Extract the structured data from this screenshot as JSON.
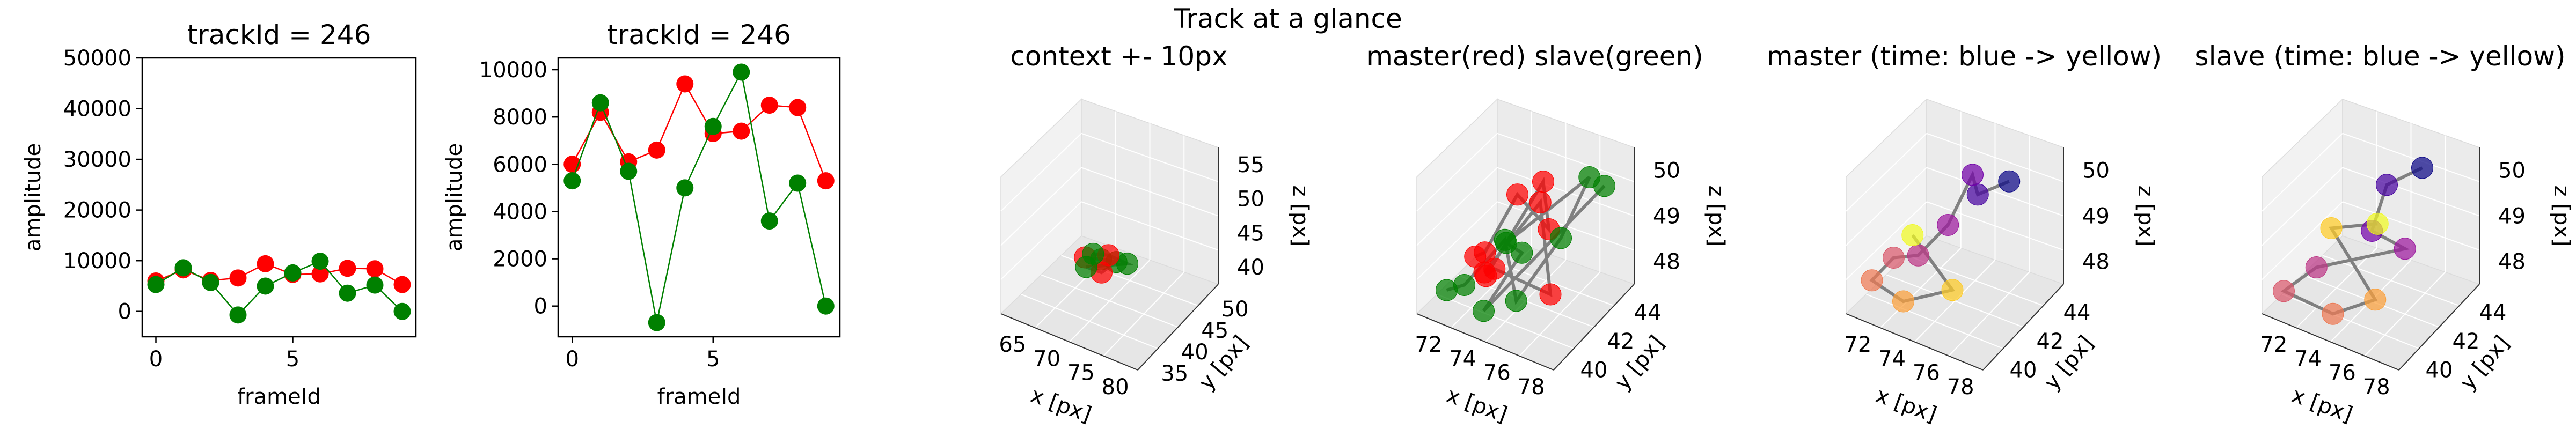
{
  "suptitle": "Track at a glance",
  "chart_data": [
    {
      "type": "line",
      "title": "trackId = 246",
      "xlabel": "frameId",
      "ylabel": "amplitude",
      "xlim": [
        -0.5,
        9.5
      ],
      "ylim": [
        -5000,
        50000
      ],
      "xticks": [
        "0",
        "5"
      ],
      "yticks": [
        "0",
        "10000",
        "20000",
        "30000",
        "40000",
        "50000"
      ],
      "x": [
        0,
        1,
        2,
        3,
        4,
        5,
        6,
        7,
        8,
        9
      ],
      "series": [
        {
          "color": "#ff0000",
          "values": [
            6000,
            8200,
            6100,
            6600,
            9400,
            7300,
            7400,
            8500,
            8400,
            5300
          ]
        },
        {
          "color": "#008000",
          "values": [
            5300,
            8600,
            5700,
            -700,
            5000,
            7600,
            9900,
            3600,
            5200,
            0
          ]
        }
      ]
    },
    {
      "type": "line",
      "title": "trackId = 246",
      "xlabel": "frameId",
      "ylabel": "amplitude",
      "xlim": [
        -0.5,
        9.5
      ],
      "ylim": [
        -1300,
        10500
      ],
      "xticks": [
        "0",
        "5"
      ],
      "yticks": [
        "0",
        "2000",
        "4000",
        "6000",
        "8000",
        "10000"
      ],
      "x": [
        0,
        1,
        2,
        3,
        4,
        5,
        6,
        7,
        8,
        9
      ],
      "series": [
        {
          "color": "#ff0000",
          "values": [
            6000,
            8200,
            6100,
            6600,
            9400,
            7300,
            7400,
            8500,
            8400,
            5300
          ]
        },
        {
          "color": "#008000",
          "values": [
            5300,
            8600,
            5700,
            -700,
            5000,
            7600,
            9900,
            3600,
            5200,
            0
          ]
        }
      ]
    },
    {
      "type": "scatter",
      "title": "context +- 10px",
      "xlabel": "x [px]",
      "ylabel": "y [px]",
      "zlabel": "z [px]",
      "xticks": [
        "65",
        "70",
        "75",
        "80"
      ],
      "yticks": [
        "35",
        "40",
        "45",
        "50"
      ],
      "zticks": [
        "40",
        "45",
        "50",
        "55"
      ]
    },
    {
      "type": "scatter",
      "title": "master(red) slave(green)",
      "xlabel": "x [px]",
      "ylabel": "y [px]",
      "zlabel": "z [px]",
      "xticks": [
        "72",
        "74",
        "76",
        "78"
      ],
      "yticks": [
        "40",
        "42",
        "44"
      ],
      "zticks": [
        "48",
        "49",
        "50"
      ]
    },
    {
      "type": "scatter",
      "title": "master (time: blue -> yellow)",
      "xlabel": "x [px]",
      "ylabel": "y [px]",
      "zlabel": "z [px]",
      "xticks": [
        "72",
        "74",
        "76",
        "78"
      ],
      "yticks": [
        "40",
        "42",
        "44"
      ],
      "zticks": [
        "48",
        "49",
        "50"
      ]
    },
    {
      "type": "scatter",
      "title": "slave (time: blue -> yellow)",
      "xlabel": "x [px]",
      "ylabel": "y [px]",
      "zlabel": "z [px]",
      "xticks": [
        "72",
        "74",
        "76",
        "78"
      ],
      "yticks": [
        "40",
        "42",
        "44"
      ],
      "zticks": [
        "48",
        "49",
        "50"
      ]
    }
  ]
}
